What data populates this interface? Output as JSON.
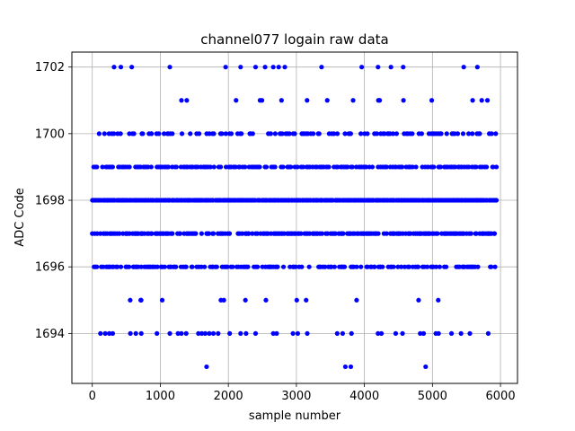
{
  "chart_data": {
    "type": "scatter",
    "title": "channel077 logain raw data",
    "xlabel": "sample number",
    "ylabel": "ADC Code",
    "xlim": [
      -300,
      6250
    ],
    "ylim": [
      1692.5,
      1702.45
    ],
    "xticks": [
      0,
      1000,
      2000,
      3000,
      4000,
      5000,
      6000
    ],
    "yticks": [
      1694,
      1696,
      1698,
      1700,
      1702
    ],
    "grid": true,
    "marker_color": "#0000ff",
    "x_range": [
      0,
      5940
    ],
    "dense_levels": [
      1695,
      1696,
      1697,
      1698,
      1699,
      1700,
      1701
    ],
    "level_density": {
      "1695": 0.06,
      "1696": 0.55,
      "1697": 0.75,
      "1698": 1.0,
      "1699": 0.7,
      "1700": 0.45,
      "1701": 0.06
    },
    "sparse_points": [
      {
        "x": 320,
        "y": 1702
      },
      {
        "x": 420,
        "y": 1702
      },
      {
        "x": 580,
        "y": 1702
      },
      {
        "x": 1140,
        "y": 1702
      },
      {
        "x": 1960,
        "y": 1702
      },
      {
        "x": 2180,
        "y": 1702
      },
      {
        "x": 2400,
        "y": 1702
      },
      {
        "x": 2540,
        "y": 1702
      },
      {
        "x": 2660,
        "y": 1702
      },
      {
        "x": 2740,
        "y": 1702
      },
      {
        "x": 2830,
        "y": 1702
      },
      {
        "x": 3370,
        "y": 1702
      },
      {
        "x": 3960,
        "y": 1702
      },
      {
        "x": 4200,
        "y": 1702
      },
      {
        "x": 4390,
        "y": 1702
      },
      {
        "x": 4570,
        "y": 1702
      },
      {
        "x": 5460,
        "y": 1702
      },
      {
        "x": 5660,
        "y": 1702
      },
      {
        "x": 120,
        "y": 1694
      },
      {
        "x": 190,
        "y": 1694
      },
      {
        "x": 250,
        "y": 1694
      },
      {
        "x": 300,
        "y": 1694
      },
      {
        "x": 560,
        "y": 1694
      },
      {
        "x": 640,
        "y": 1694
      },
      {
        "x": 720,
        "y": 1694
      },
      {
        "x": 950,
        "y": 1694
      },
      {
        "x": 1140,
        "y": 1694
      },
      {
        "x": 1260,
        "y": 1694
      },
      {
        "x": 1310,
        "y": 1694
      },
      {
        "x": 1380,
        "y": 1694
      },
      {
        "x": 1560,
        "y": 1694
      },
      {
        "x": 1610,
        "y": 1694
      },
      {
        "x": 1660,
        "y": 1694
      },
      {
        "x": 1720,
        "y": 1694
      },
      {
        "x": 1780,
        "y": 1694
      },
      {
        "x": 1850,
        "y": 1694
      },
      {
        "x": 2020,
        "y": 1694
      },
      {
        "x": 2180,
        "y": 1694
      },
      {
        "x": 2260,
        "y": 1694
      },
      {
        "x": 2400,
        "y": 1694
      },
      {
        "x": 2660,
        "y": 1694
      },
      {
        "x": 2710,
        "y": 1694
      },
      {
        "x": 2950,
        "y": 1694
      },
      {
        "x": 3020,
        "y": 1694
      },
      {
        "x": 3160,
        "y": 1694
      },
      {
        "x": 3600,
        "y": 1694
      },
      {
        "x": 3680,
        "y": 1694
      },
      {
        "x": 3810,
        "y": 1694
      },
      {
        "x": 4200,
        "y": 1694
      },
      {
        "x": 4250,
        "y": 1694
      },
      {
        "x": 4460,
        "y": 1694
      },
      {
        "x": 4560,
        "y": 1694
      },
      {
        "x": 4820,
        "y": 1694
      },
      {
        "x": 4870,
        "y": 1694
      },
      {
        "x": 5050,
        "y": 1694
      },
      {
        "x": 5090,
        "y": 1694
      },
      {
        "x": 5280,
        "y": 1694
      },
      {
        "x": 5420,
        "y": 1694
      },
      {
        "x": 5550,
        "y": 1694
      },
      {
        "x": 5820,
        "y": 1694
      },
      {
        "x": 1680,
        "y": 1693
      },
      {
        "x": 3720,
        "y": 1693
      },
      {
        "x": 3800,
        "y": 1693
      },
      {
        "x": 4900,
        "y": 1693
      }
    ]
  }
}
